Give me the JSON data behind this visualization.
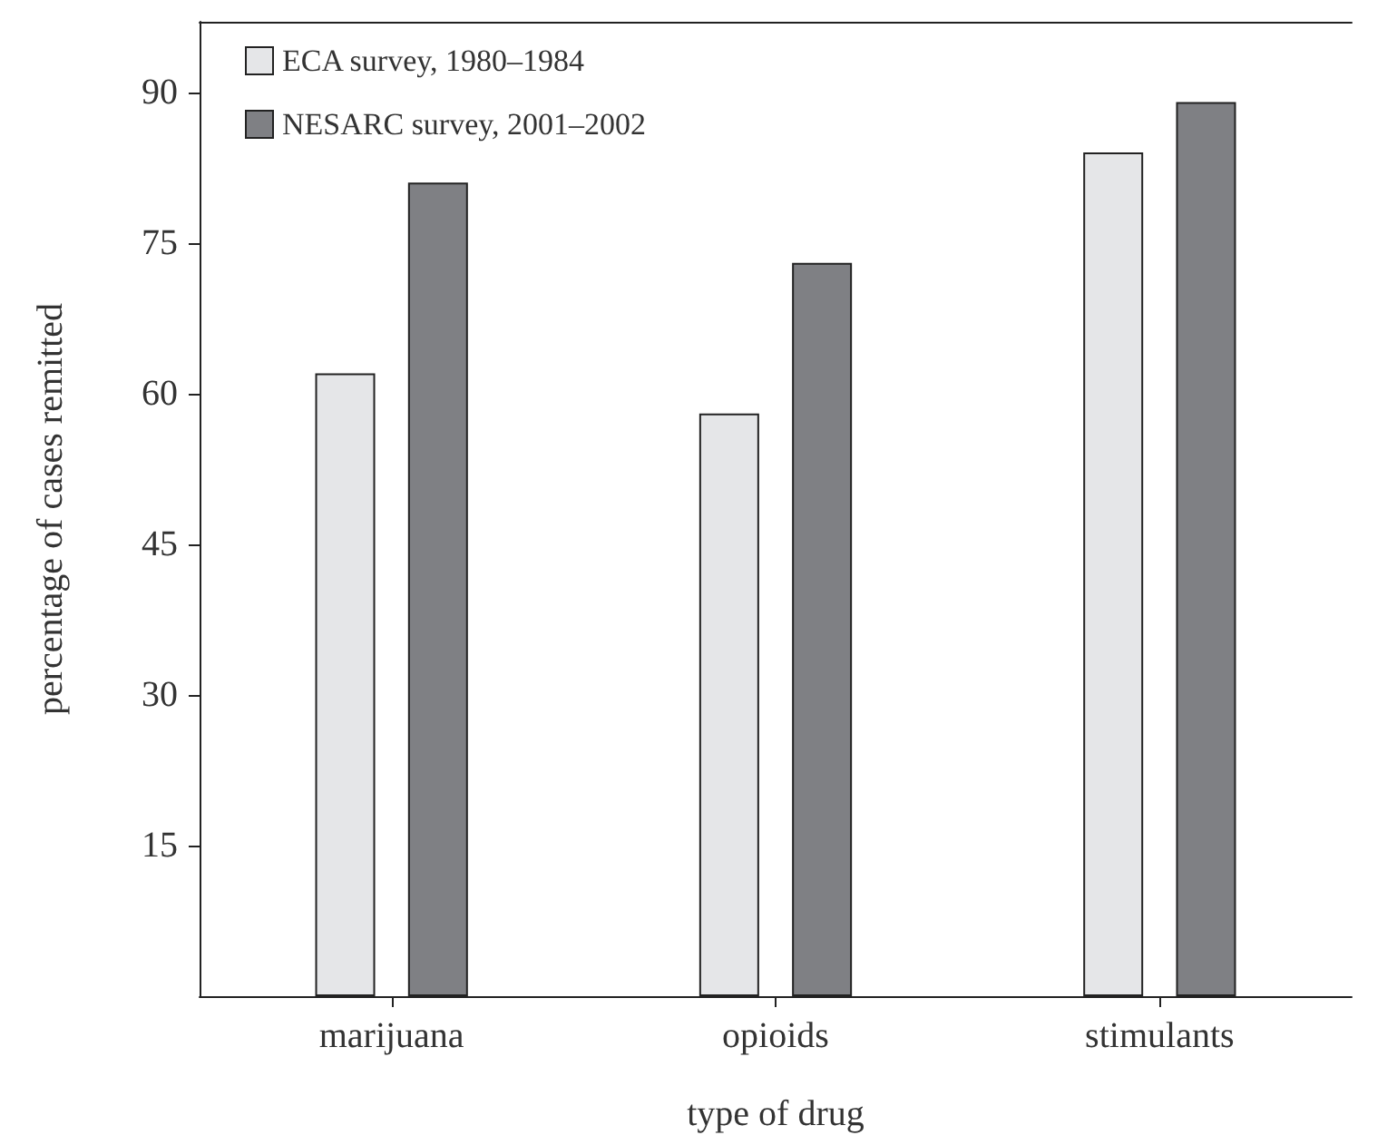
{
  "chart_data": {
    "type": "bar",
    "xlabel": "type of drug",
    "ylabel": "percentage of cases remitted",
    "categories": [
      "marijuana",
      "opioids",
      "stimulants"
    ],
    "series": [
      {
        "name": "ECA survey, 1980–1984",
        "color": "#e5e6e8",
        "values": [
          62,
          58,
          84
        ]
      },
      {
        "name": "NESARC survey, 2001–2002",
        "color": "#7f8084",
        "values": [
          81,
          73,
          89
        ]
      }
    ],
    "ylim": [
      0,
      97
    ],
    "yticks": [
      15,
      30,
      45,
      60,
      75,
      90
    ],
    "grid": false,
    "legend": "top left"
  }
}
